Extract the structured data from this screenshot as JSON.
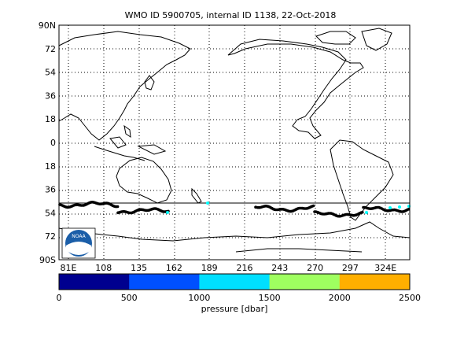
{
  "title": "WMO ID 5900705, internal ID 1138, 22-Oct-2018",
  "map": {
    "lat_ticks": [
      "90N",
      "72",
      "54",
      "36",
      "18",
      "0",
      "18",
      "36",
      "54",
      "72",
      "90S"
    ],
    "lon_ticks": [
      "81E",
      "108",
      "135",
      "162",
      "189",
      "216",
      "243",
      "270",
      "297",
      "324E"
    ],
    "grid": true,
    "marker_color": "#000000",
    "highlight_color": "#00ffff"
  },
  "colorbar": {
    "label": "pressure [dbar]",
    "ticks": [
      "0",
      "500",
      "1000",
      "1500",
      "2000",
      "2500"
    ],
    "colors": [
      "#00008f",
      "#0050ff",
      "#00dfff",
      "#9fff60",
      "#ffaf00"
    ]
  },
  "logo": {
    "name": "NOAA",
    "text": "NOAA"
  }
}
